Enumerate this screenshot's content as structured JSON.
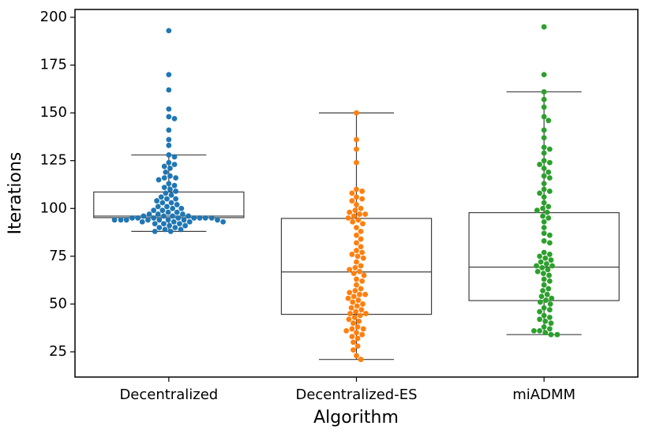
{
  "chart_data": {
    "type": "box-swarm",
    "xlabel": "Algorithm",
    "ylabel": "Iterations",
    "categories": [
      "Decentralized",
      "Decentralized-ES",
      "miADMM"
    ],
    "colors": [
      "#1f77b4",
      "#ff7f0e",
      "#2ca02c"
    ],
    "boxes": [
      {
        "whislo": 88,
        "q1": 95.2,
        "med": 96,
        "q3": 108.6,
        "whishi": 128
      },
      {
        "whislo": 21,
        "q1": 44.6,
        "med": 66.8,
        "q3": 94.8,
        "whishi": 150
      },
      {
        "whislo": 34,
        "q1": 51.8,
        "med": 69.3,
        "q3": 97.8,
        "whishi": 161
      }
    ],
    "points": [
      [
        193,
        170,
        162,
        152,
        148,
        147,
        141,
        136,
        133,
        128,
        127,
        124,
        123,
        122,
        121,
        119,
        117,
        116,
        116,
        115,
        113,
        112,
        111,
        110,
        109,
        108,
        107,
        106,
        105,
        105,
        104,
        103,
        103,
        102,
        101,
        101,
        100,
        100,
        99,
        99,
        98,
        98,
        97,
        97,
        97,
        96,
        96,
        96,
        96,
        95,
        95,
        95,
        95,
        95,
        95,
        95,
        95,
        94,
        94,
        94,
        94,
        94,
        94,
        94,
        94,
        93,
        93,
        93,
        93,
        92,
        92,
        92,
        91,
        91,
        90,
        90,
        89,
        89,
        88,
        88
      ],
      [
        150,
        136,
        131,
        124,
        110,
        109,
        108,
        106,
        105,
        104,
        102,
        100,
        99,
        98,
        97,
        97,
        96,
        95,
        94,
        93,
        92,
        90,
        88,
        86,
        84,
        82,
        80,
        78,
        77,
        76,
        75,
        74,
        72,
        70,
        69,
        68,
        67,
        66,
        65,
        63,
        62,
        60,
        58,
        57,
        56,
        55,
        55,
        54,
        53,
        52,
        51,
        50,
        49,
        48,
        47,
        46,
        45,
        45,
        44,
        43,
        42,
        41,
        40,
        38,
        37,
        37,
        36,
        35,
        34,
        33,
        32,
        30,
        28,
        26,
        23,
        21
      ],
      [
        195,
        170,
        161,
        157,
        153,
        148,
        146,
        141,
        137,
        132,
        131,
        129,
        125,
        124,
        123,
        121,
        119,
        117,
        116,
        113,
        110,
        109,
        108,
        106,
        103,
        101,
        100,
        99,
        98,
        96,
        95,
        93,
        90,
        87,
        86,
        83,
        82,
        77,
        76,
        75,
        74,
        73,
        72,
        71,
        70,
        70,
        69,
        68,
        67,
        66,
        65,
        63,
        62,
        60,
        58,
        57,
        55,
        54,
        53,
        52,
        51,
        50,
        48,
        47,
        46,
        44,
        43,
        42,
        41,
        40,
        38,
        37,
        36,
        36,
        35,
        34,
        34
      ]
    ],
    "ylim": [
      11.8,
      204.1
    ],
    "yticks": [
      25,
      50,
      75,
      100,
      125,
      150,
      175,
      200
    ]
  }
}
